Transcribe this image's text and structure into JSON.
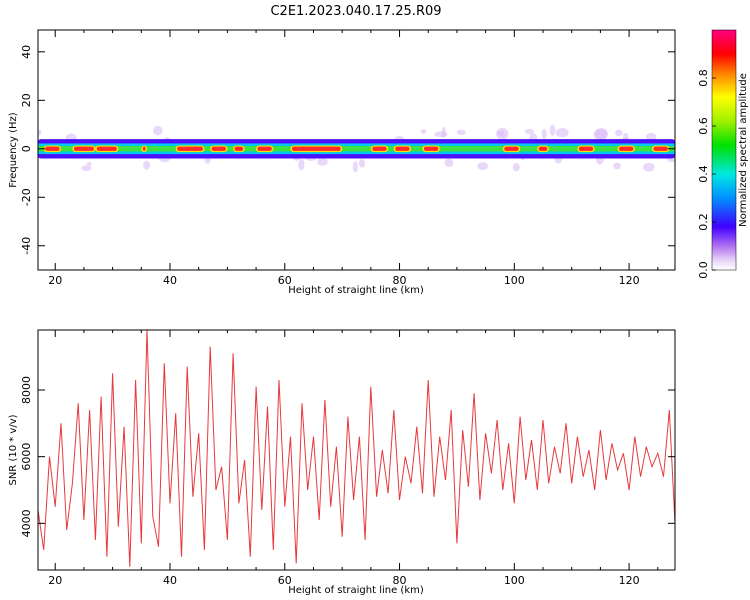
{
  "title": "C2E1.2023.040.17.25.R09",
  "chart_data": [
    {
      "type": "heatmap",
      "title": "",
      "xlabel": "Height of straight line (km)",
      "ylabel": "Frequency (Hz)",
      "xlim": [
        17,
        128
      ],
      "ylim": [
        -50,
        49
      ],
      "xticks": [
        20,
        40,
        60,
        80,
        100,
        120
      ],
      "yticks": [
        -40,
        -20,
        0,
        20,
        40
      ],
      "colorbar": {
        "label": "Normalized spectral amplitude",
        "range": [
          0,
          1
        ],
        "ticks": [
          0.0,
          0.2,
          0.4,
          0.6,
          0.8
        ],
        "colormap": "rainbow (purple-blue-cyan-green-yellow-red-magenta)"
      },
      "description_values": {
        "band_center_hz": 0,
        "band_halfwidth_hz": 4,
        "peak_segments_km": [
          [
            18,
            21
          ],
          [
            23,
            27
          ],
          [
            27,
            31
          ],
          [
            35,
            36
          ],
          [
            41,
            46
          ],
          [
            47,
            50
          ],
          [
            51,
            53
          ],
          [
            55,
            58
          ],
          [
            61,
            70
          ],
          [
            75,
            78
          ],
          [
            79,
            82
          ],
          [
            84,
            87
          ],
          [
            98,
            101
          ],
          [
            104,
            106
          ],
          [
            111,
            114
          ],
          [
            118,
            121
          ],
          [
            124,
            127
          ]
        ]
      }
    },
    {
      "type": "line",
      "title": "",
      "xlabel": "Height of straight line (km)",
      "ylabel": "SNR (10 * v/v)",
      "xlim": [
        17,
        128
      ],
      "ylim": [
        2600,
        9800
      ],
      "xticks": [
        20,
        40,
        60,
        80,
        100,
        120
      ],
      "yticks": [
        4000,
        6000,
        8000
      ],
      "series": [
        {
          "color": "#e8383d",
          "x": [
            17,
            18,
            19,
            20,
            21,
            22,
            23,
            24,
            25,
            26,
            27,
            28,
            29,
            30,
            31,
            32,
            33,
            34,
            35,
            36,
            37,
            38,
            39,
            40,
            41,
            42,
            43,
            44,
            45,
            46,
            47,
            48,
            49,
            50,
            51,
            52,
            53,
            54,
            55,
            56,
            57,
            58,
            59,
            60,
            61,
            62,
            63,
            64,
            65,
            66,
            67,
            68,
            69,
            70,
            71,
            72,
            73,
            74,
            75,
            76,
            77,
            78,
            79,
            80,
            81,
            82,
            83,
            84,
            85,
            86,
            87,
            88,
            89,
            90,
            91,
            92,
            93,
            94,
            95,
            96,
            97,
            98,
            99,
            100,
            101,
            102,
            103,
            104,
            105,
            106,
            107,
            108,
            109,
            110,
            111,
            112,
            113,
            114,
            115,
            116,
            117,
            118,
            119,
            120,
            121,
            122,
            123,
            124,
            125,
            126,
            127,
            128
          ],
          "y": [
            4400,
            3200,
            6000,
            4500,
            7000,
            3800,
            5200,
            7600,
            4100,
            7400,
            3500,
            7800,
            3000,
            8500,
            3900,
            6900,
            2700,
            8300,
            3400,
            9800,
            4200,
            3300,
            8800,
            4600,
            7300,
            3000,
            8700,
            4800,
            6700,
            3200,
            9300,
            5000,
            5700,
            3500,
            9100,
            4600,
            5900,
            3000,
            8100,
            4400,
            7500,
            3200,
            8300,
            4500,
            6600,
            2800,
            7600,
            5000,
            6600,
            4100,
            7700,
            4500,
            6300,
            3600,
            7200,
            4700,
            6600,
            3500,
            8100,
            4800,
            6200,
            4900,
            7400,
            4700,
            6000,
            5200,
            6900,
            4900,
            8300,
            4800,
            6600,
            5300,
            7400,
            3400,
            6800,
            5100,
            7900,
            4700,
            6700,
            5500,
            7100,
            5000,
            6400,
            4600,
            7200,
            5300,
            6500,
            5000,
            7100,
            5200,
            6300,
            5500,
            7000,
            5200,
            6600,
            5400,
            6200,
            5000,
            6800,
            5300,
            6400,
            5600,
            6100,
            5000,
            6600,
            5400,
            6300,
            5700,
            6100,
            5400,
            7400,
            4000
          ]
        }
      ]
    }
  ]
}
